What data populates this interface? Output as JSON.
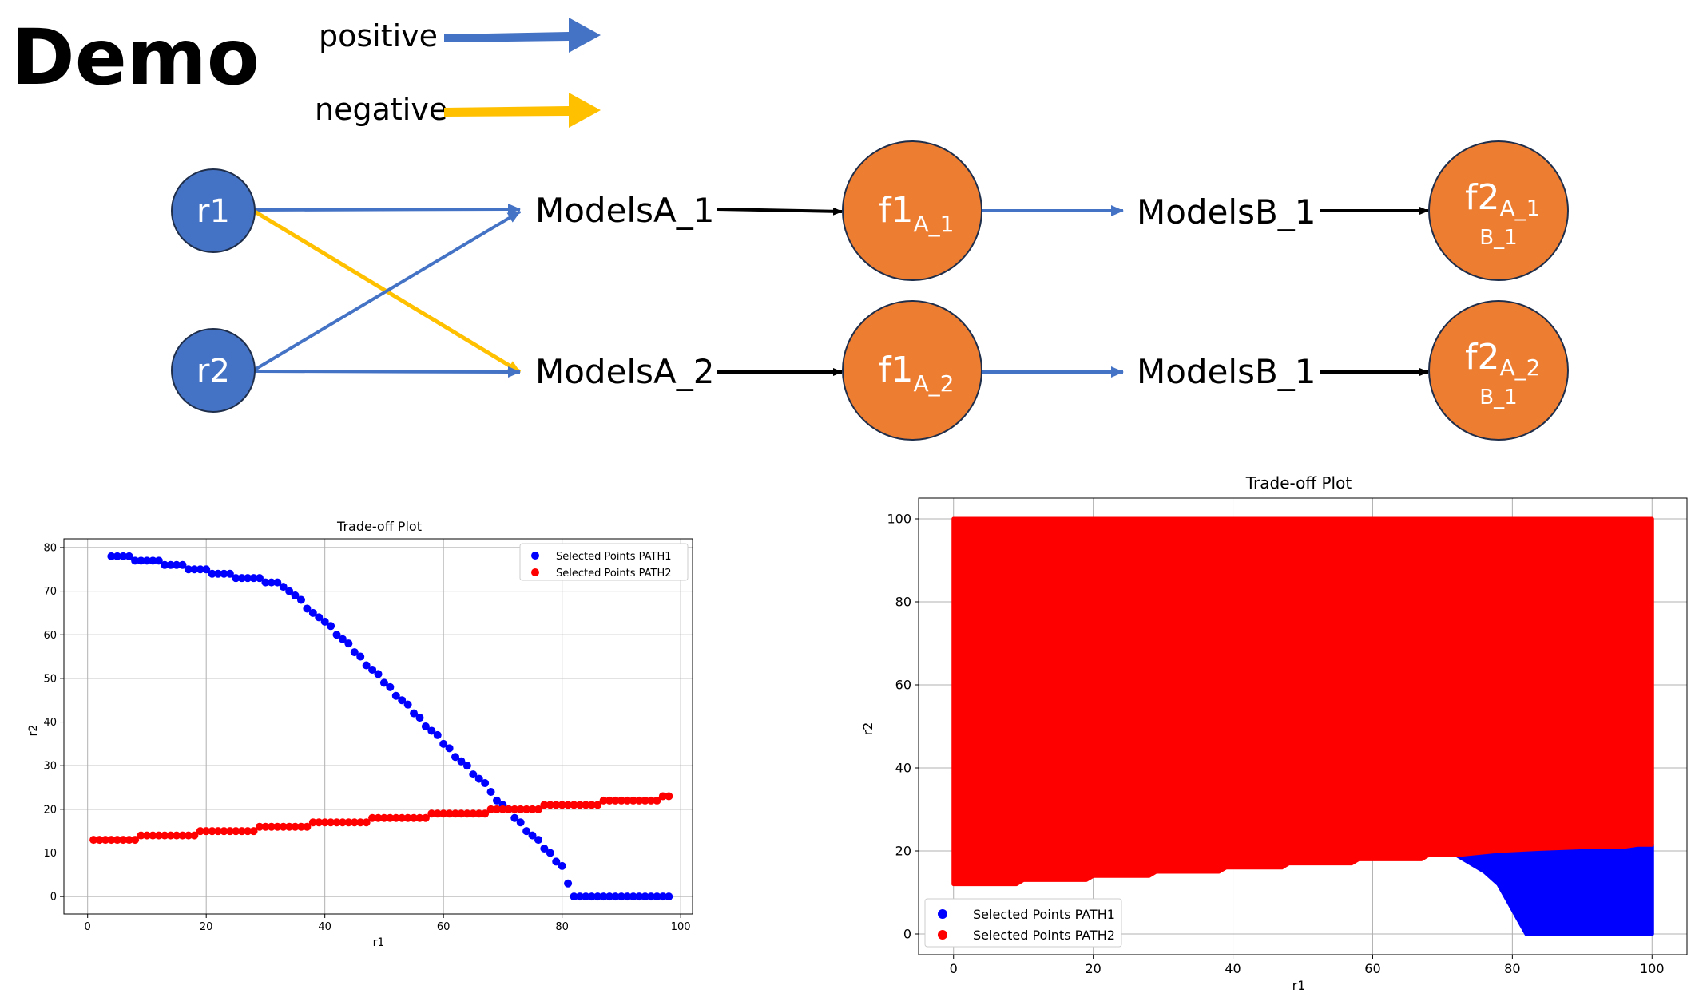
{
  "title": "Demo",
  "legend": {
    "positive": "positive",
    "negative": "negative"
  },
  "colors": {
    "positive": "#4472C4",
    "negative": "#FFC000",
    "input_node": "#4472C4",
    "output_node": "#ED7D31",
    "neutral_arrow": "#000000",
    "path1": "#0000FF",
    "path2": "#FF0000"
  },
  "diagram": {
    "inputs": [
      {
        "label": "r1"
      },
      {
        "label": "r2"
      }
    ],
    "models_a": [
      {
        "label": "ModelsA_1"
      },
      {
        "label": "ModelsA_2"
      }
    ],
    "f1": [
      {
        "main": "f1",
        "sub": "A_1"
      },
      {
        "main": "f1",
        "sub": "A_2"
      }
    ],
    "models_b": [
      {
        "label": "ModelsB_1"
      },
      {
        "label": "ModelsB_1"
      }
    ],
    "f2": [
      {
        "main": "f2",
        "sub": "A_1",
        "sub2": "B_1"
      },
      {
        "main": "f2",
        "sub": "A_2",
        "sub2": "B_1"
      }
    ],
    "edges": [
      {
        "from": "r1",
        "to": "ModelsA_1",
        "sign": "positive"
      },
      {
        "from": "r1",
        "to": "ModelsA_2",
        "sign": "negative"
      },
      {
        "from": "r2",
        "to": "ModelsA_1",
        "sign": "positive"
      },
      {
        "from": "r2",
        "to": "ModelsA_2",
        "sign": "positive"
      },
      {
        "from": "ModelsA_1",
        "to": "f1_A_1",
        "sign": "neutral"
      },
      {
        "from": "ModelsA_2",
        "to": "f1_A_2",
        "sign": "neutral"
      },
      {
        "from": "f1_A_1",
        "to": "ModelsB_1",
        "sign": "positive"
      },
      {
        "from": "f1_A_2",
        "to": "ModelsB_1",
        "sign": "positive"
      },
      {
        "from": "ModelsB_1",
        "to": "f2_A_1_B_1",
        "sign": "neutral"
      },
      {
        "from": "ModelsB_1",
        "to": "f2_A_2_B_1",
        "sign": "neutral"
      }
    ]
  },
  "chart_data": [
    {
      "type": "scatter",
      "title": "Trade-off Plot",
      "xlabel": "r1",
      "ylabel": "r2",
      "xlim": [
        -4,
        102
      ],
      "ylim": [
        -4,
        82
      ],
      "xticks": [
        "0",
        "20",
        "40",
        "60",
        "80",
        "100"
      ],
      "yticks": [
        "0",
        "10",
        "20",
        "30",
        "40",
        "50",
        "60",
        "70",
        "80"
      ],
      "grid": true,
      "legend_position": "top-right",
      "series": [
        {
          "name": "Selected Points PATH1",
          "color": "#0000FF",
          "points": [
            [
              4,
              78
            ],
            [
              5,
              78
            ],
            [
              6,
              78
            ],
            [
              7,
              78
            ],
            [
              8,
              77
            ],
            [
              9,
              77
            ],
            [
              10,
              77
            ],
            [
              11,
              77
            ],
            [
              12,
              77
            ],
            [
              13,
              76
            ],
            [
              14,
              76
            ],
            [
              15,
              76
            ],
            [
              16,
              76
            ],
            [
              17,
              75
            ],
            [
              18,
              75
            ],
            [
              19,
              75
            ],
            [
              20,
              75
            ],
            [
              21,
              74
            ],
            [
              22,
              74
            ],
            [
              23,
              74
            ],
            [
              24,
              74
            ],
            [
              25,
              73
            ],
            [
              26,
              73
            ],
            [
              27,
              73
            ],
            [
              28,
              73
            ],
            [
              29,
              73
            ],
            [
              30,
              72
            ],
            [
              31,
              72
            ],
            [
              32,
              72
            ],
            [
              33,
              71
            ],
            [
              34,
              70
            ],
            [
              35,
              69
            ],
            [
              36,
              68
            ],
            [
              37,
              66
            ],
            [
              38,
              65
            ],
            [
              39,
              64
            ],
            [
              40,
              63
            ],
            [
              41,
              62
            ],
            [
              42,
              60
            ],
            [
              43,
              59
            ],
            [
              44,
              58
            ],
            [
              45,
              56
            ],
            [
              46,
              55
            ],
            [
              47,
              53
            ],
            [
              48,
              52
            ],
            [
              49,
              51
            ],
            [
              50,
              49
            ],
            [
              51,
              48
            ],
            [
              52,
              46
            ],
            [
              53,
              45
            ],
            [
              54,
              44
            ],
            [
              55,
              42
            ],
            [
              56,
              41
            ],
            [
              57,
              39
            ],
            [
              58,
              38
            ],
            [
              59,
              37
            ],
            [
              60,
              35
            ],
            [
              61,
              34
            ],
            [
              62,
              32
            ],
            [
              63,
              31
            ],
            [
              64,
              30
            ],
            [
              65,
              28
            ],
            [
              66,
              27
            ],
            [
              67,
              26
            ],
            [
              68,
              24
            ],
            [
              69,
              22
            ],
            [
              70,
              21
            ],
            [
              71,
              20
            ],
            [
              72,
              18
            ],
            [
              73,
              17
            ],
            [
              74,
              15
            ],
            [
              75,
              14
            ],
            [
              76,
              13
            ],
            [
              77,
              11
            ],
            [
              78,
              10
            ],
            [
              79,
              8
            ],
            [
              80,
              7
            ],
            [
              81,
              3
            ],
            [
              82,
              0
            ],
            [
              83,
              0
            ],
            [
              84,
              0
            ],
            [
              85,
              0
            ],
            [
              86,
              0
            ],
            [
              87,
              0
            ],
            [
              88,
              0
            ],
            [
              89,
              0
            ],
            [
              90,
              0
            ],
            [
              91,
              0
            ],
            [
              92,
              0
            ],
            [
              93,
              0
            ],
            [
              94,
              0
            ],
            [
              95,
              0
            ],
            [
              96,
              0
            ],
            [
              97,
              0
            ],
            [
              98,
              0
            ]
          ]
        },
        {
          "name": "Selected Points PATH2",
          "color": "#FF0000",
          "points": [
            [
              1,
              13
            ],
            [
              2,
              13
            ],
            [
              3,
              13
            ],
            [
              4,
              13
            ],
            [
              5,
              13
            ],
            [
              6,
              13
            ],
            [
              7,
              13
            ],
            [
              8,
              13
            ],
            [
              9,
              14
            ],
            [
              10,
              14
            ],
            [
              11,
              14
            ],
            [
              12,
              14
            ],
            [
              13,
              14
            ],
            [
              14,
              14
            ],
            [
              15,
              14
            ],
            [
              16,
              14
            ],
            [
              17,
              14
            ],
            [
              18,
              14
            ],
            [
              19,
              15
            ],
            [
              20,
              15
            ],
            [
              21,
              15
            ],
            [
              22,
              15
            ],
            [
              23,
              15
            ],
            [
              24,
              15
            ],
            [
              25,
              15
            ],
            [
              26,
              15
            ],
            [
              27,
              15
            ],
            [
              28,
              15
            ],
            [
              29,
              16
            ],
            [
              30,
              16
            ],
            [
              31,
              16
            ],
            [
              32,
              16
            ],
            [
              33,
              16
            ],
            [
              34,
              16
            ],
            [
              35,
              16
            ],
            [
              36,
              16
            ],
            [
              37,
              16
            ],
            [
              38,
              17
            ],
            [
              39,
              17
            ],
            [
              40,
              17
            ],
            [
              41,
              17
            ],
            [
              42,
              17
            ],
            [
              43,
              17
            ],
            [
              44,
              17
            ],
            [
              45,
              17
            ],
            [
              46,
              17
            ],
            [
              47,
              17
            ],
            [
              48,
              18
            ],
            [
              49,
              18
            ],
            [
              50,
              18
            ],
            [
              51,
              18
            ],
            [
              52,
              18
            ],
            [
              53,
              18
            ],
            [
              54,
              18
            ],
            [
              55,
              18
            ],
            [
              56,
              18
            ],
            [
              57,
              18
            ],
            [
              58,
              19
            ],
            [
              59,
              19
            ],
            [
              60,
              19
            ],
            [
              61,
              19
            ],
            [
              62,
              19
            ],
            [
              63,
              19
            ],
            [
              64,
              19
            ],
            [
              65,
              19
            ],
            [
              66,
              19
            ],
            [
              67,
              19
            ],
            [
              68,
              20
            ],
            [
              69,
              20
            ],
            [
              70,
              20
            ],
            [
              71,
              20
            ],
            [
              72,
              20
            ],
            [
              73,
              20
            ],
            [
              74,
              20
            ],
            [
              75,
              20
            ],
            [
              76,
              20
            ],
            [
              77,
              21
            ],
            [
              78,
              21
            ],
            [
              79,
              21
            ],
            [
              80,
              21
            ],
            [
              81,
              21
            ],
            [
              82,
              21
            ],
            [
              83,
              21
            ],
            [
              84,
              21
            ],
            [
              85,
              21
            ],
            [
              86,
              21
            ],
            [
              87,
              22
            ],
            [
              88,
              22
            ],
            [
              89,
              22
            ],
            [
              90,
              22
            ],
            [
              91,
              22
            ],
            [
              92,
              22
            ],
            [
              93,
              22
            ],
            [
              94,
              22
            ],
            [
              95,
              22
            ],
            [
              96,
              22
            ],
            [
              97,
              23
            ],
            [
              98,
              23
            ]
          ]
        }
      ]
    },
    {
      "type": "scatter",
      "title": "Trade-off Plot",
      "xlabel": "r1",
      "ylabel": "r2",
      "xlim": [
        -5,
        105
      ],
      "ylim": [
        -5,
        105
      ],
      "xticks": [
        "0",
        "20",
        "40",
        "60",
        "80",
        "100"
      ],
      "yticks": [
        "0",
        "20",
        "40",
        "60",
        "80",
        "100"
      ],
      "grid": true,
      "legend_position": "lower-left",
      "series": [
        {
          "name": "Selected Points PATH1",
          "color": "#0000FF",
          "region_lower_boundary": [
            [
              72,
              19
            ],
            [
              74,
              17
            ],
            [
              76,
              15
            ],
            [
              78,
              12
            ],
            [
              80,
              6
            ],
            [
              81,
              3
            ],
            [
              82,
              0
            ],
            [
              100,
              0
            ]
          ],
          "region_upper_boundary": [
            [
              72,
              19
            ],
            [
              78,
              20
            ],
            [
              84,
              20.5
            ],
            [
              92,
              21
            ],
            [
              96,
              21
            ],
            [
              98,
              21.5
            ],
            [
              100,
              21.5
            ]
          ]
        },
        {
          "name": "Selected Points PATH2",
          "color": "#FF0000",
          "region_lower_boundary": [
            [
              0,
              12
            ],
            [
              1,
              12
            ],
            [
              9,
              12
            ],
            [
              10,
              13
            ],
            [
              19,
              13
            ],
            [
              20,
              14
            ],
            [
              28,
              14
            ],
            [
              29,
              15
            ],
            [
              38,
              15
            ],
            [
              39,
              16
            ],
            [
              47,
              16
            ],
            [
              48,
              17
            ],
            [
              57,
              17
            ],
            [
              58,
              18
            ],
            [
              67,
              18
            ],
            [
              68,
              19
            ],
            [
              72,
              19
            ],
            [
              78,
              20
            ],
            [
              84,
              20.5
            ],
            [
              92,
              21
            ],
            [
              96,
              21
            ],
            [
              98,
              21.5
            ],
            [
              100,
              21.5
            ]
          ],
          "region_upper_boundary": [
            [
              0,
              100
            ],
            [
              100,
              100
            ]
          ]
        }
      ]
    }
  ]
}
